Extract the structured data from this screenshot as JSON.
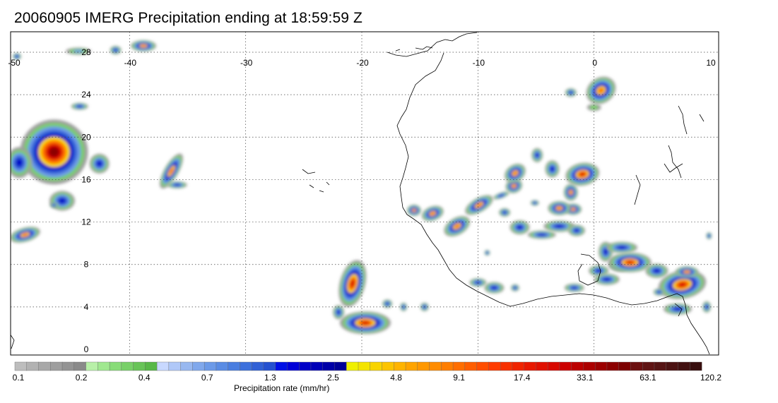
{
  "title": "20060905 IMERG Precipitation ending at 18:59:59 Z",
  "map": {
    "lon_range": [
      -50,
      10
    ],
    "lat_range": [
      -0.5,
      29
    ],
    "lon_ticks": [
      "-50",
      "-40",
      "-30",
      "-20",
      "-10",
      "0",
      "10"
    ],
    "lat_ticks": [
      "0",
      "4",
      "8",
      "12",
      "16",
      "20",
      "24",
      "28"
    ],
    "grid": "dotted"
  },
  "colorbar": {
    "label": "Precipitation rate (mm/hr)",
    "tick_labels": [
      "0.1",
      "0.2",
      "0.4",
      "0.7",
      "1.3",
      "2.5",
      "4.8",
      "9.1",
      "17.4",
      "33.1",
      "63.1",
      "120.2"
    ],
    "colors": [
      "#bdbdbd",
      "#b2b2b2",
      "#a8a8a8",
      "#9e9e9e",
      "#949494",
      "#8a8a8a",
      "#b8f0a8",
      "#a0e890",
      "#88dc78",
      "#78d068",
      "#68c458",
      "#58b848",
      "#c8d8ff",
      "#b0c8f8",
      "#98b8f0",
      "#80a8ec",
      "#6c9ae8",
      "#5a8ce4",
      "#4a7ee0",
      "#3c70dc",
      "#3060d6",
      "#2450d0",
      "#0010e6",
      "#0000d8",
      "#0000c8",
      "#0000b8",
      "#0000a8",
      "#000098",
      "#f0f000",
      "#f4e400",
      "#f8d400",
      "#fcc400",
      "#ffb400",
      "#ffa400",
      "#ff9800",
      "#ff8c00",
      "#ff7e00",
      "#ff6e00",
      "#ff5e00",
      "#ff4e00",
      "#ff3c00",
      "#f83000",
      "#f02400",
      "#e81800",
      "#e01000",
      "#d80800",
      "#cc0000",
      "#bc0000",
      "#ac0000",
      "#9c0000",
      "#8c0000",
      "#7c0000",
      "#6c1010",
      "#601414",
      "#561414",
      "#4c1212",
      "#421010",
      "#380e0e"
    ]
  },
  "features": [
    {
      "name": "storm-core-20n-46w",
      "lon": -46.5,
      "lat": 18.8,
      "level": 4
    },
    {
      "name": "storm-core-6n-20w",
      "lon": -20.8,
      "lat": 6.2,
      "level": 3
    },
    {
      "name": "storm-core-2n-19w",
      "lon": -19.5,
      "lat": 2.6,
      "level": 3
    },
    {
      "name": "storm-core-7n-8e",
      "lon": 7.6,
      "lat": 6.1,
      "level": 3
    },
    {
      "name": "storm-core-8n-3e",
      "lon": 3.1,
      "lat": 8.2,
      "level": 2
    },
    {
      "name": "storm-core-16n-1w",
      "lon": -1.3,
      "lat": 16.3,
      "level": 2
    },
    {
      "name": "storm-core-13n-15w",
      "lon": -14.5,
      "lat": 12.8,
      "level": 2
    },
    {
      "name": "storm-core-11n-50w",
      "lon": -49.0,
      "lat": 10.9,
      "level": 2
    },
    {
      "name": "storm-core-17n-36w",
      "lon": -36.5,
      "lat": 16.8,
      "level": 1
    }
  ]
}
